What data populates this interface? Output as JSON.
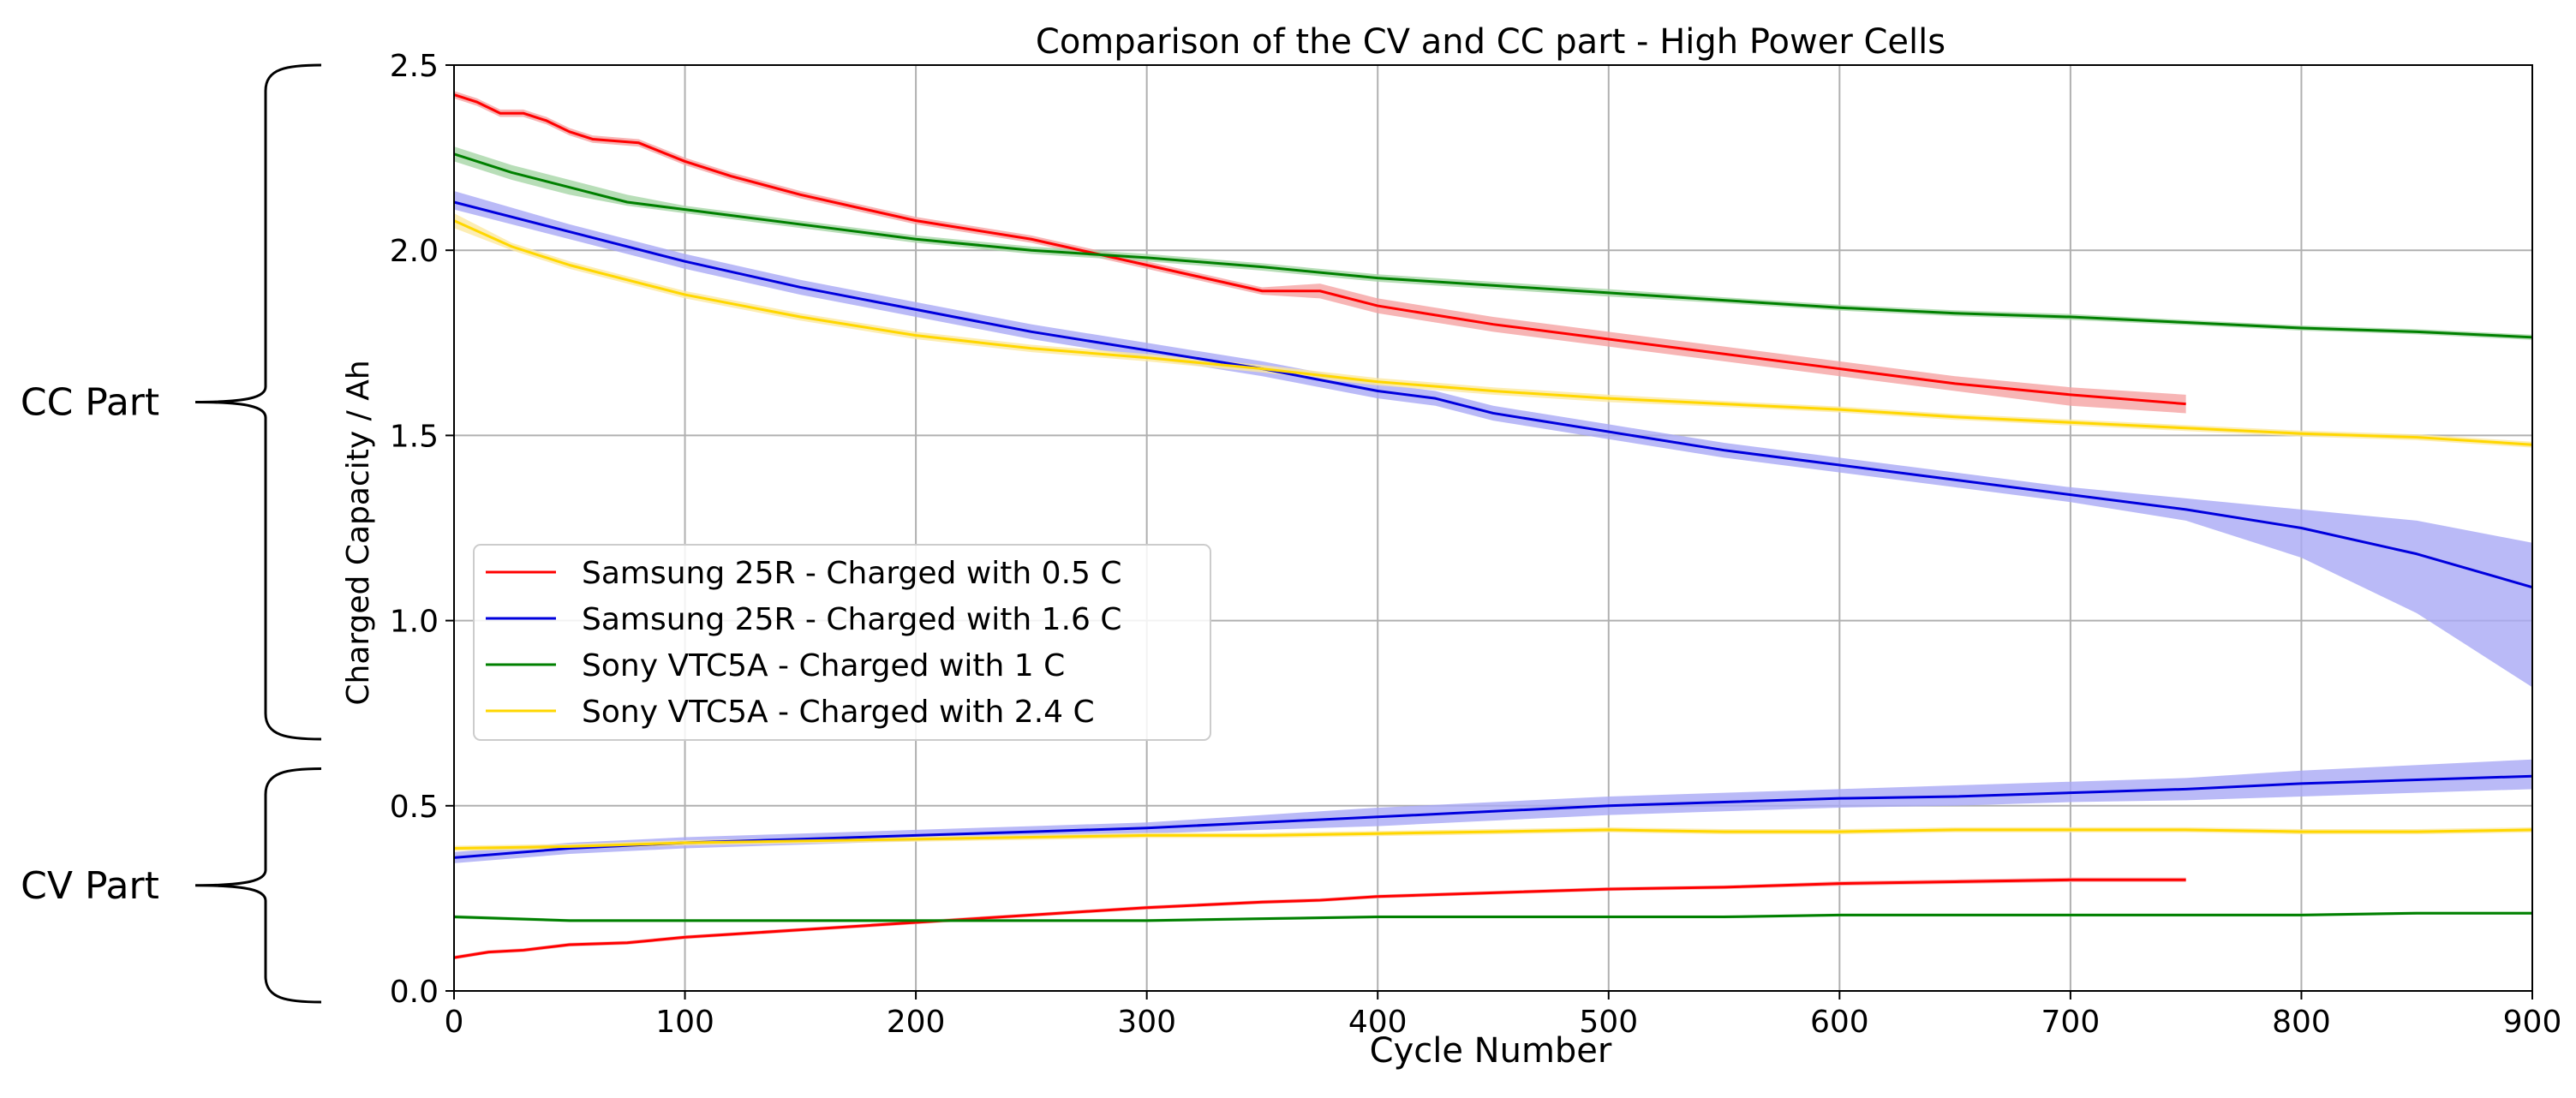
{
  "chart_data": {
    "type": "line",
    "title": "Comparison of the CV and CC part - High Power Cells",
    "xlabel": "Cycle Number",
    "ylabel": "Charged Capacity / Ah",
    "xlim": [
      0,
      900
    ],
    "ylim": [
      0,
      2.5
    ],
    "x_ticks": [
      0,
      100,
      200,
      300,
      400,
      500,
      600,
      700,
      800,
      900
    ],
    "y_ticks": [
      0.0,
      0.5,
      1.0,
      1.5,
      2.0,
      2.5
    ],
    "x_tick_labels": [
      "0",
      "100",
      "200",
      "300",
      "400",
      "500",
      "600",
      "700",
      "800",
      "900"
    ],
    "y_tick_labels": [
      "0.0",
      "0.5",
      "1.0",
      "1.5",
      "2.0",
      "2.5"
    ],
    "grid": true,
    "legend_position": "center-left",
    "side_annotations": [
      {
        "label": "CC Part",
        "y_range": [
          0.68,
          2.5
        ]
      },
      {
        "label": "CV Part",
        "y_range": [
          -0.03,
          0.6
        ]
      }
    ],
    "series": [
      {
        "name": "Samsung 25R - Charged with 0.5 C",
        "color": "#ff0000",
        "band_color": "#f5a3a3",
        "legend": true,
        "x": [
          0,
          10,
          20,
          30,
          40,
          50,
          60,
          80,
          100,
          120,
          150,
          200,
          250,
          300,
          350,
          375,
          400,
          450,
          500,
          550,
          600,
          650,
          700,
          750
        ],
        "y": [
          2.42,
          2.4,
          2.37,
          2.37,
          2.35,
          2.32,
          2.3,
          2.29,
          2.24,
          2.2,
          2.15,
          2.08,
          2.03,
          1.96,
          1.89,
          1.89,
          1.85,
          1.8,
          1.76,
          1.72,
          1.68,
          1.64,
          1.61,
          1.585
        ],
        "y_lower": [
          2.41,
          2.39,
          2.36,
          2.36,
          2.34,
          2.31,
          2.29,
          2.28,
          2.23,
          2.19,
          2.14,
          2.07,
          2.02,
          1.95,
          1.88,
          1.87,
          1.83,
          1.78,
          1.74,
          1.7,
          1.66,
          1.62,
          1.58,
          1.56
        ],
        "y_upper": [
          2.43,
          2.41,
          2.38,
          2.38,
          2.36,
          2.33,
          2.31,
          2.3,
          2.25,
          2.21,
          2.16,
          2.09,
          2.04,
          1.97,
          1.9,
          1.91,
          1.87,
          1.82,
          1.78,
          1.74,
          1.7,
          1.66,
          1.63,
          1.61
        ]
      },
      {
        "name": "Samsung 25R - Charged with 1.6 C",
        "color": "#0000dd",
        "band_color": "#a9a9f5",
        "legend": true,
        "x": [
          0,
          50,
          100,
          150,
          200,
          250,
          300,
          350,
          400,
          425,
          450,
          500,
          550,
          600,
          650,
          700,
          750,
          800,
          850,
          900
        ],
        "y": [
          2.13,
          2.05,
          1.97,
          1.9,
          1.84,
          1.78,
          1.73,
          1.68,
          1.62,
          1.6,
          1.56,
          1.51,
          1.46,
          1.42,
          1.38,
          1.34,
          1.3,
          1.25,
          1.18,
          1.09
        ],
        "y_lower": [
          2.11,
          2.03,
          1.95,
          1.88,
          1.82,
          1.76,
          1.71,
          1.66,
          1.6,
          1.58,
          1.54,
          1.49,
          1.44,
          1.4,
          1.36,
          1.32,
          1.27,
          1.17,
          1.02,
          0.82
        ],
        "y_upper": [
          2.16,
          2.07,
          1.99,
          1.92,
          1.86,
          1.8,
          1.75,
          1.7,
          1.64,
          1.62,
          1.58,
          1.53,
          1.48,
          1.44,
          1.4,
          1.36,
          1.33,
          1.3,
          1.27,
          1.21
        ]
      },
      {
        "name": "Sony VTC5A - Charged with 1 C",
        "color": "#008000",
        "band_color": "#a6d6a6",
        "legend": true,
        "x": [
          0,
          25,
          50,
          75,
          100,
          150,
          200,
          250,
          300,
          350,
          400,
          450,
          500,
          550,
          600,
          650,
          700,
          750,
          800,
          850,
          900
        ],
        "y": [
          2.26,
          2.21,
          2.17,
          2.13,
          2.11,
          2.07,
          2.03,
          2.0,
          1.98,
          1.955,
          1.925,
          1.905,
          1.885,
          1.865,
          1.845,
          1.83,
          1.82,
          1.805,
          1.79,
          1.78,
          1.765
        ],
        "y_lower": [
          2.24,
          2.19,
          2.15,
          2.12,
          2.1,
          2.06,
          2.02,
          1.99,
          1.97,
          1.945,
          1.915,
          1.895,
          1.875,
          1.857,
          1.837,
          1.822,
          1.812,
          1.798,
          1.783,
          1.773,
          1.758
        ],
        "y_upper": [
          2.28,
          2.23,
          2.19,
          2.15,
          2.12,
          2.08,
          2.04,
          2.01,
          1.99,
          1.965,
          1.935,
          1.915,
          1.895,
          1.873,
          1.853,
          1.838,
          1.828,
          1.812,
          1.797,
          1.787,
          1.772
        ]
      },
      {
        "name": "Sony VTC5A - Charged with 2.4 C",
        "color": "#ffd700",
        "band_color": "#fbe9a0",
        "legend": true,
        "x": [
          0,
          25,
          50,
          75,
          100,
          150,
          200,
          250,
          300,
          350,
          400,
          450,
          500,
          550,
          600,
          650,
          700,
          750,
          800,
          850,
          900
        ],
        "y": [
          2.08,
          2.01,
          1.96,
          1.92,
          1.88,
          1.82,
          1.77,
          1.735,
          1.71,
          1.68,
          1.645,
          1.62,
          1.6,
          1.585,
          1.57,
          1.55,
          1.535,
          1.52,
          1.505,
          1.495,
          1.475
        ],
        "y_lower": [
          2.06,
          2.0,
          1.95,
          1.91,
          1.87,
          1.81,
          1.76,
          1.725,
          1.7,
          1.67,
          1.635,
          1.61,
          1.59,
          1.577,
          1.562,
          1.542,
          1.527,
          1.512,
          1.497,
          1.487,
          1.467
        ],
        "y_upper": [
          2.1,
          2.02,
          1.97,
          1.93,
          1.89,
          1.83,
          1.78,
          1.745,
          1.72,
          1.69,
          1.655,
          1.63,
          1.61,
          1.593,
          1.578,
          1.558,
          1.543,
          1.528,
          1.513,
          1.503,
          1.483
        ]
      },
      {
        "name": "Samsung 25R - Charged with 0.5 C (CV)",
        "color": "#ff0000",
        "band_color": "#f5a3a3",
        "legend": false,
        "x": [
          0,
          15,
          30,
          50,
          75,
          100,
          150,
          200,
          250,
          300,
          350,
          375,
          400,
          450,
          500,
          550,
          600,
          650,
          700,
          750
        ],
        "y": [
          0.09,
          0.105,
          0.11,
          0.125,
          0.13,
          0.145,
          0.165,
          0.185,
          0.205,
          0.225,
          0.24,
          0.245,
          0.255,
          0.265,
          0.275,
          0.28,
          0.29,
          0.295,
          0.3,
          0.3
        ],
        "y_lower": [
          0.085,
          0.1,
          0.105,
          0.12,
          0.125,
          0.14,
          0.16,
          0.18,
          0.2,
          0.22,
          0.235,
          0.24,
          0.25,
          0.26,
          0.27,
          0.275,
          0.284,
          0.289,
          0.294,
          0.294
        ],
        "y_upper": [
          0.095,
          0.11,
          0.115,
          0.13,
          0.135,
          0.15,
          0.17,
          0.19,
          0.21,
          0.23,
          0.245,
          0.25,
          0.26,
          0.27,
          0.28,
          0.285,
          0.296,
          0.301,
          0.306,
          0.306
        ]
      },
      {
        "name": "Samsung 25R - Charged with 1.6 C (CV)",
        "color": "#0000dd",
        "band_color": "#a9a9f5",
        "legend": false,
        "x": [
          0,
          50,
          100,
          150,
          200,
          250,
          300,
          350,
          400,
          450,
          500,
          550,
          600,
          650,
          700,
          750,
          800,
          850,
          900
        ],
        "y": [
          0.36,
          0.385,
          0.4,
          0.41,
          0.42,
          0.43,
          0.44,
          0.455,
          0.47,
          0.485,
          0.5,
          0.51,
          0.52,
          0.525,
          0.535,
          0.545,
          0.56,
          0.57,
          0.58
        ],
        "y_lower": [
          0.345,
          0.37,
          0.385,
          0.395,
          0.405,
          0.415,
          0.425,
          0.435,
          0.445,
          0.46,
          0.475,
          0.485,
          0.495,
          0.5,
          0.51,
          0.515,
          0.525,
          0.535,
          0.545
        ],
        "y_upper": [
          0.375,
          0.4,
          0.415,
          0.425,
          0.435,
          0.445,
          0.455,
          0.475,
          0.495,
          0.51,
          0.525,
          0.535,
          0.545,
          0.555,
          0.565,
          0.575,
          0.595,
          0.61,
          0.625
        ]
      },
      {
        "name": "Sony VTC5A - Charged with 1 C (CV)",
        "color": "#008000",
        "band_color": "#a6d6a6",
        "legend": false,
        "x": [
          0,
          50,
          100,
          150,
          200,
          250,
          300,
          350,
          400,
          450,
          500,
          550,
          600,
          650,
          700,
          750,
          800,
          850,
          900
        ],
        "y": [
          0.2,
          0.19,
          0.19,
          0.19,
          0.19,
          0.19,
          0.19,
          0.195,
          0.2,
          0.2,
          0.2,
          0.2,
          0.205,
          0.205,
          0.205,
          0.205,
          0.205,
          0.21,
          0.21
        ],
        "y_lower": [
          0.195,
          0.186,
          0.186,
          0.186,
          0.186,
          0.186,
          0.186,
          0.191,
          0.196,
          0.196,
          0.196,
          0.196,
          0.201,
          0.201,
          0.201,
          0.201,
          0.201,
          0.206,
          0.206
        ],
        "y_upper": [
          0.205,
          0.194,
          0.194,
          0.194,
          0.194,
          0.194,
          0.194,
          0.199,
          0.204,
          0.204,
          0.204,
          0.204,
          0.209,
          0.209,
          0.209,
          0.209,
          0.209,
          0.214,
          0.214
        ]
      },
      {
        "name": "Sony VTC5A - Charged with 2.4 C (CV)",
        "color": "#ffd700",
        "band_color": "#fbe9a0",
        "legend": false,
        "x": [
          0,
          50,
          100,
          150,
          200,
          250,
          300,
          350,
          400,
          450,
          500,
          550,
          600,
          650,
          700,
          750,
          800,
          850,
          900
        ],
        "y": [
          0.385,
          0.39,
          0.4,
          0.405,
          0.41,
          0.415,
          0.42,
          0.42,
          0.425,
          0.43,
          0.435,
          0.43,
          0.43,
          0.435,
          0.435,
          0.435,
          0.43,
          0.43,
          0.435
        ],
        "y_lower": [
          0.378,
          0.383,
          0.393,
          0.398,
          0.403,
          0.408,
          0.413,
          0.413,
          0.418,
          0.423,
          0.428,
          0.423,
          0.423,
          0.428,
          0.428,
          0.428,
          0.423,
          0.423,
          0.428
        ],
        "y_upper": [
          0.392,
          0.397,
          0.407,
          0.412,
          0.417,
          0.422,
          0.427,
          0.427,
          0.432,
          0.437,
          0.442,
          0.437,
          0.437,
          0.442,
          0.442,
          0.442,
          0.437,
          0.437,
          0.442
        ]
      }
    ]
  }
}
